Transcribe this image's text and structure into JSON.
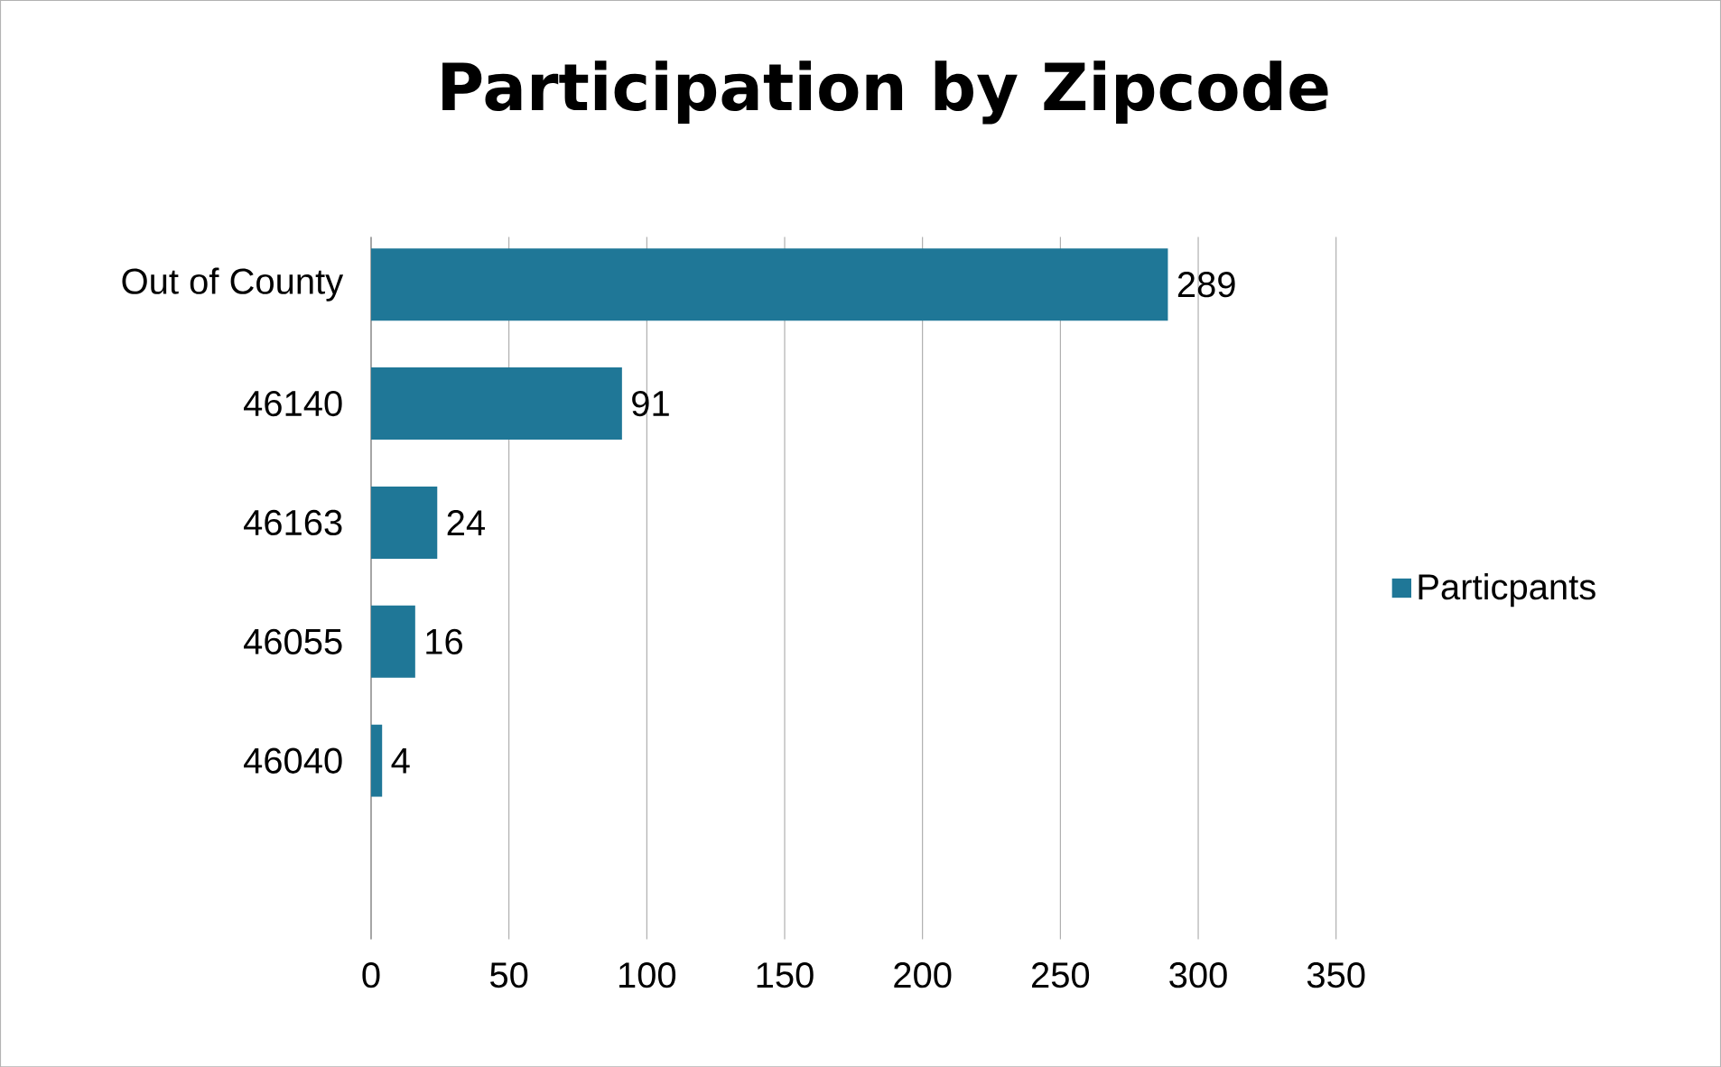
{
  "chart_data": {
    "type": "bar",
    "orientation": "horizontal",
    "title": "Participation by Zipcode",
    "categories": [
      "Out of County",
      "46140",
      "46163",
      "46055",
      "46040"
    ],
    "series": [
      {
        "name": "Particpants",
        "color": "#1f7797",
        "values": [
          289,
          91,
          24,
          16,
          4
        ]
      }
    ],
    "xlim": [
      0,
      350
    ],
    "xticks": [
      0,
      50,
      100,
      150,
      200,
      250,
      300,
      350
    ],
    "grid": "x",
    "legend": "right",
    "data_labels": true
  }
}
